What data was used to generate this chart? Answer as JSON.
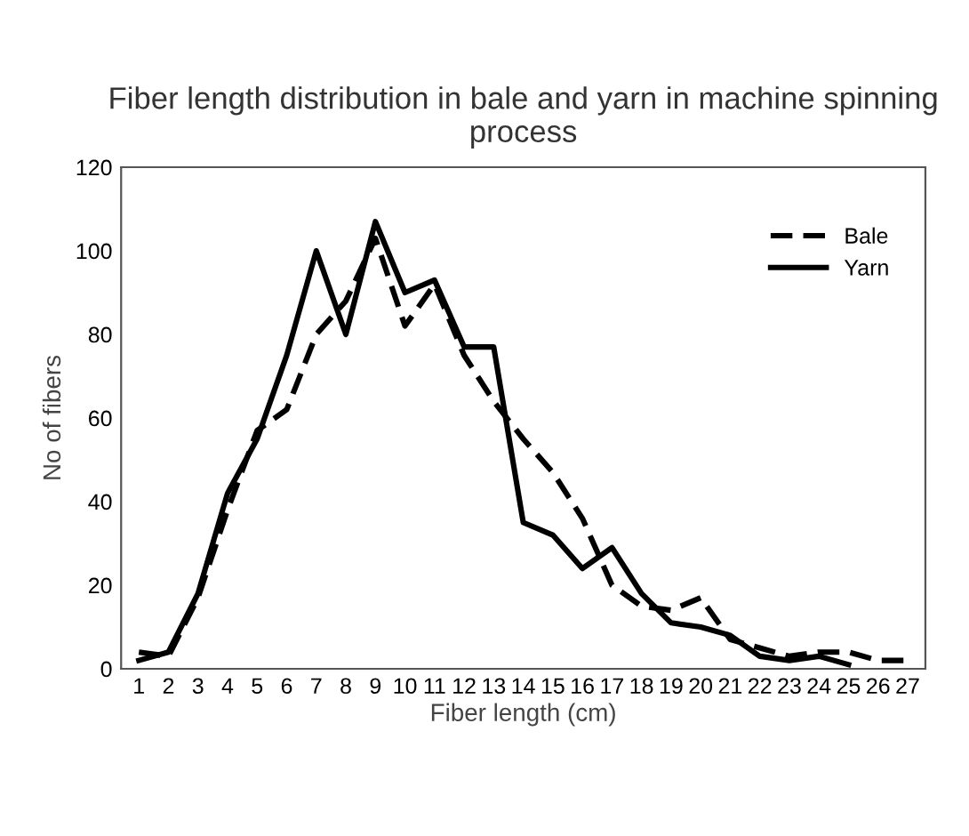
{
  "chart_data": {
    "type": "line",
    "title": "Fiber length distribution in bale and yarn in machine spinning process",
    "xlabel": "Fiber length (cm)",
    "ylabel": "No of fibers",
    "categories": [
      "1",
      "2",
      "3",
      "4",
      "5",
      "6",
      "7",
      "8",
      "9",
      "10",
      "11",
      "12",
      "13",
      "14",
      "15",
      "16",
      "17",
      "18",
      "19",
      "20",
      "21",
      "22",
      "23",
      "24",
      "25",
      "26",
      "27"
    ],
    "series": [
      {
        "name": "Bale",
        "color": "#000000",
        "line_style": "dashed",
        "values": [
          4,
          3,
          17,
          38,
          57,
          62,
          80,
          88,
          103,
          82,
          92,
          75,
          64,
          55,
          47,
          36,
          20,
          15,
          14,
          17,
          7,
          5,
          3,
          4,
          4,
          2,
          2
        ]
      },
      {
        "name": "Yarn",
        "color": "#000000",
        "line_style": "solid",
        "values": [
          2,
          4,
          18,
          42,
          55,
          75,
          100,
          80,
          107,
          90,
          93,
          77,
          77,
          35,
          32,
          24,
          29,
          18,
          11,
          10,
          8,
          3,
          2,
          3,
          1,
          null,
          null
        ]
      }
    ],
    "ylim": [
      0,
      120
    ],
    "yticks": [
      0,
      20,
      40,
      60,
      80,
      100,
      120
    ],
    "grid": false,
    "legend": "top right",
    "marker": "none"
  }
}
